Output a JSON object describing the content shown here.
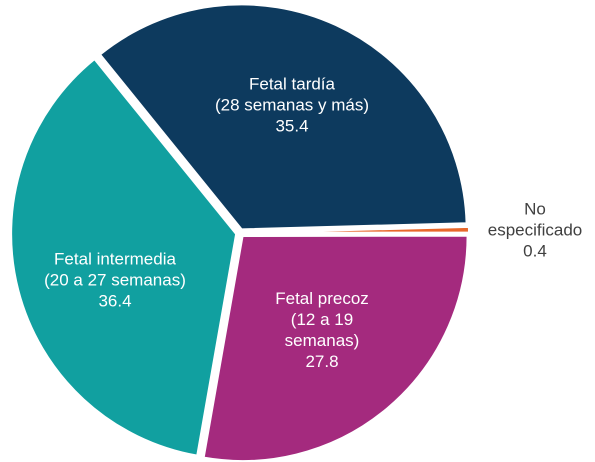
{
  "chart_data": {
    "type": "pie",
    "categories": [
      "Fetal tardía\n(28 semanas y más)",
      "No\nespecificado",
      "Fetal precoz\n(12 a 19\nsemanas)",
      "Fetal intermedia\n(20 a 27 semanas)"
    ],
    "values": [
      35.4,
      0.4,
      27.8,
      36.4
    ],
    "colors": [
      "#0d3a5e",
      "#e8682a",
      "#a42a7e",
      "#11a0a0"
    ]
  }
}
